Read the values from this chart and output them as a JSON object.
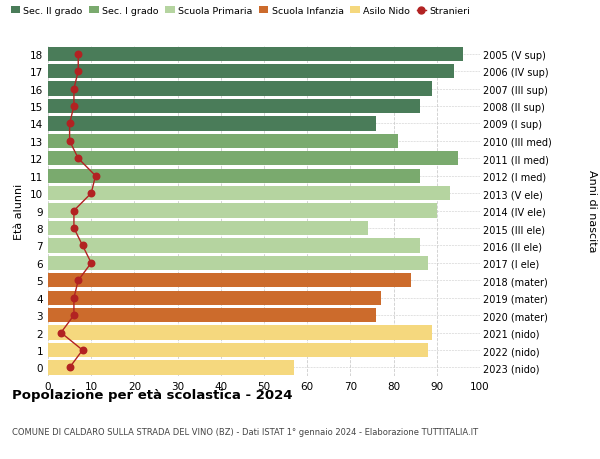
{
  "ages": [
    18,
    17,
    16,
    15,
    14,
    13,
    12,
    11,
    10,
    9,
    8,
    7,
    6,
    5,
    4,
    3,
    2,
    1,
    0
  ],
  "anni_nascita": [
    "2005 (V sup)",
    "2006 (IV sup)",
    "2007 (III sup)",
    "2008 (II sup)",
    "2009 (I sup)",
    "2010 (III med)",
    "2011 (II med)",
    "2012 (I med)",
    "2013 (V ele)",
    "2014 (IV ele)",
    "2015 (III ele)",
    "2016 (II ele)",
    "2017 (I ele)",
    "2018 (mater)",
    "2019 (mater)",
    "2020 (mater)",
    "2021 (nido)",
    "2022 (nido)",
    "2023 (nido)"
  ],
  "bar_values": [
    96,
    94,
    89,
    86,
    76,
    81,
    95,
    86,
    93,
    90,
    74,
    86,
    88,
    84,
    77,
    76,
    89,
    88,
    57
  ],
  "bar_colors": [
    "#4a7c59",
    "#4a7c59",
    "#4a7c59",
    "#4a7c59",
    "#4a7c59",
    "#7aaa6e",
    "#7aaa6e",
    "#7aaa6e",
    "#b5d4a0",
    "#b5d4a0",
    "#b5d4a0",
    "#b5d4a0",
    "#b5d4a0",
    "#cc6b2c",
    "#cc6b2c",
    "#cc6b2c",
    "#f5d87e",
    "#f5d87e",
    "#f5d87e"
  ],
  "stranieri_values": [
    7,
    7,
    6,
    6,
    5,
    5,
    7,
    11,
    10,
    6,
    6,
    8,
    10,
    7,
    6,
    6,
    3,
    8,
    5
  ],
  "legend_labels": [
    "Sec. II grado",
    "Sec. I grado",
    "Scuola Primaria",
    "Scuola Infanzia",
    "Asilo Nido",
    "Stranieri"
  ],
  "legend_colors": [
    "#4a7c59",
    "#7aaa6e",
    "#b5d4a0",
    "#cc6b2c",
    "#f5d87e",
    "#b22222"
  ],
  "ylabel_left": "Età alunni",
  "ylabel_right": "Anni di nascita",
  "title": "Popolazione per età scolastica - 2024",
  "subtitle": "COMUNE DI CALDARO SULLA STRADA DEL VINO (BZ) - Dati ISTAT 1° gennaio 2024 - Elaborazione TUTTITALIA.IT",
  "xlim": [
    0,
    100
  ],
  "background_color": "#ffffff",
  "plot_bg_color": "#ffffff",
  "grid_color": "#cccccc"
}
